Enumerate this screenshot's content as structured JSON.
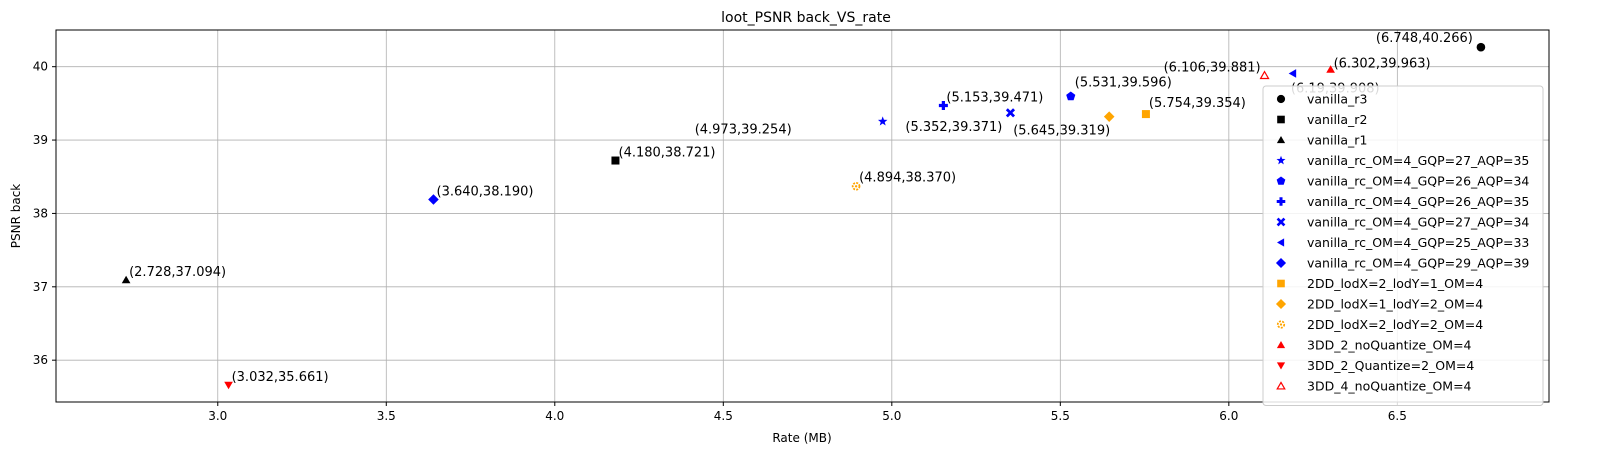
{
  "chart_data": {
    "type": "scatter",
    "title": "loot_PSNR back_VS_rate",
    "xlabel": "Rate (MB)",
    "ylabel": "PSNR back",
    "xlim": [
      2.52,
      6.95
    ],
    "ylim": [
      35.43,
      40.5
    ],
    "xticks": [
      3.0,
      3.5,
      4.0,
      4.5,
      5.0,
      5.5,
      6.0,
      6.5
    ],
    "yticks": [
      36,
      37,
      38,
      39,
      40
    ],
    "grid": true,
    "legend_position": "right",
    "series": [
      {
        "name": "vanilla_r3",
        "marker": "circle",
        "color": "#000000",
        "x": 6.748,
        "y": 40.266,
        "label": "(6.748,40.266)"
      },
      {
        "name": "vanilla_r2",
        "marker": "square",
        "color": "#000000",
        "x": 4.18,
        "y": 38.721,
        "label": "(4.180,38.721)"
      },
      {
        "name": "vanilla_r1",
        "marker": "triangle-up",
        "color": "#000000",
        "x": 2.728,
        "y": 37.094,
        "label": "(2.728,37.094)"
      },
      {
        "name": "vanilla_rc_OM=4_GQP=27_AQP=35",
        "marker": "star",
        "color": "#0000ff",
        "x": 4.973,
        "y": 39.254,
        "label": "(4.973,39.254)"
      },
      {
        "name": "vanilla_rc_OM=4_GQP=26_AQP=34",
        "marker": "pentagon",
        "color": "#0000ff",
        "x": 5.531,
        "y": 39.596,
        "label": "(5.531,39.596)"
      },
      {
        "name": "vanilla_rc_OM=4_GQP=26_AQP=35",
        "marker": "plus",
        "color": "#0000ff",
        "x": 5.153,
        "y": 39.471,
        "label": "(5.153,39.471)"
      },
      {
        "name": "vanilla_rc_OM=4_GQP=27_AQP=34",
        "marker": "x",
        "color": "#0000ff",
        "x": 5.352,
        "y": 39.371,
        "label": "(5.352,39.371)"
      },
      {
        "name": "vanilla_rc_OM=4_GQP=25_AQP=33",
        "marker": "triangle-left",
        "color": "#0000ff",
        "x": 6.19,
        "y": 39.908,
        "label": "(6.19,39.908)"
      },
      {
        "name": "vanilla_rc_OM=4_GQP=29_AQP=39",
        "marker": "diamond",
        "color": "#0000ff",
        "x": 3.64,
        "y": 38.19,
        "label": "(3.640,38.190)"
      },
      {
        "name": "2DD_lodX=2_lodY=1_OM=4",
        "marker": "square",
        "color": "#ffa500",
        "x": 5.754,
        "y": 39.354,
        "label": "(5.754,39.354)"
      },
      {
        "name": "2DD_lodX=1_lodY=2_OM=4",
        "marker": "diamond",
        "color": "#ffa500",
        "x": 5.645,
        "y": 39.319,
        "label": "(5.645,39.319)"
      },
      {
        "name": "2DD_lodX=2_lodY=2_OM=4",
        "marker": "gear",
        "color": "#ffa500",
        "x": 4.894,
        "y": 38.37,
        "label": "(4.894,38.370)"
      },
      {
        "name": "3DD_2_noQuantize_OM=4",
        "marker": "triangle-up",
        "color": "#ff0000",
        "x": 6.302,
        "y": 39.963,
        "label": "(6.302,39.963)"
      },
      {
        "name": "3DD_2_Quantize=2_OM=4",
        "marker": "triangle-down",
        "color": "#ff0000",
        "x": 3.032,
        "y": 35.661,
        "label": "(3.032,35.661)"
      },
      {
        "name": "3DD_4_noQuantize_OM=4",
        "marker": "triangle-up-open",
        "color": "#ff0000",
        "x": 6.106,
        "y": 39.881,
        "label": "(6.106,39.881)"
      }
    ]
  }
}
